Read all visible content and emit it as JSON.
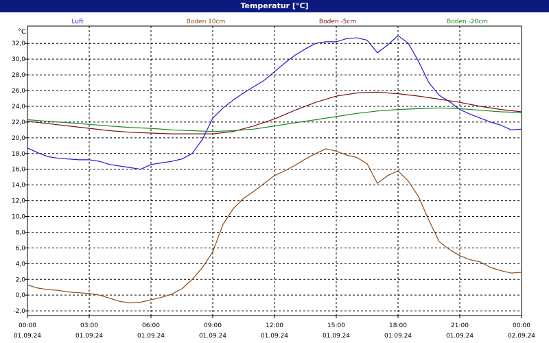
{
  "window": {
    "title": "Temperatur [°C]"
  },
  "chart_data": {
    "type": "line",
    "title": "Temperatur [°C]",
    "ylabel": "°C",
    "xlabel": "",
    "ylim": [
      -2.6,
      34.2
    ],
    "yticks": [
      -2,
      0,
      2,
      4,
      6,
      8,
      10,
      12,
      14,
      16,
      18,
      20,
      22,
      24,
      26,
      28,
      30,
      32
    ],
    "ytick_labels": [
      "-2,0",
      "0,0",
      "2,0",
      "4,0",
      "6,0",
      "8,0",
      "10,0",
      "12,0",
      "14,0",
      "16,0",
      "18,0",
      "20,0",
      "22,0",
      "24,0",
      "26,0",
      "28,0",
      "30,0",
      "32,0"
    ],
    "xlim": [
      0,
      24
    ],
    "xticks": [
      0,
      3,
      6,
      9,
      12,
      15,
      18,
      21,
      24
    ],
    "xtick_times": [
      "00:00",
      "03:00",
      "06:00",
      "09:00",
      "12:00",
      "15:00",
      "18:00",
      "21:00",
      "00:00"
    ],
    "xtick_dates": [
      "01.09.24",
      "01.09.24",
      "01.09.24",
      "01.09.24",
      "01.09.24",
      "01.09.24",
      "01.09.24",
      "01.09.24",
      "02.09.24"
    ],
    "grid": true,
    "legend": "top",
    "series": [
      {
        "name": "Luft",
        "color": "#1a1ad6",
        "x": [
          0,
          0.5,
          1,
          1.5,
          2,
          2.5,
          3,
          3.5,
          4,
          4.5,
          5,
          5.5,
          6,
          6.5,
          7,
          7.5,
          8,
          8.5,
          9,
          9.5,
          10,
          10.5,
          11,
          11.5,
          12,
          12.5,
          13,
          13.5,
          14,
          14.5,
          15,
          15.5,
          16,
          16.5,
          17,
          17.5,
          18,
          18.5,
          19,
          19.5,
          20,
          20.5,
          21,
          21.5,
          22,
          22.5,
          23,
          23.5,
          24
        ],
        "y": [
          18.7,
          18.1,
          17.6,
          17.4,
          17.3,
          17.2,
          17.2,
          17.0,
          16.6,
          16.4,
          16.2,
          16.0,
          16.6,
          16.8,
          17.0,
          17.3,
          18.0,
          19.8,
          22.5,
          23.8,
          24.8,
          25.7,
          26.5,
          27.3,
          28.4,
          29.5,
          30.5,
          31.3,
          32.0,
          32.2,
          32.2,
          32.6,
          32.7,
          32.4,
          30.8,
          31.8,
          33.0,
          32.0,
          29.7,
          27.0,
          25.4,
          24.6,
          23.6,
          23.0,
          22.5,
          22.0,
          21.6,
          21.0,
          21.1
        ]
      },
      {
        "name": "Boden 10cm",
        "color": "#8a4a12",
        "x": [
          0,
          0.5,
          1,
          1.5,
          2,
          2.5,
          3,
          3.5,
          4,
          4.5,
          5,
          5.5,
          6,
          6.5,
          7,
          7.5,
          8,
          8.5,
          9,
          9.5,
          10,
          10.5,
          11,
          11.5,
          12,
          12.5,
          13,
          13.5,
          14,
          14.5,
          15,
          15.5,
          16,
          16.5,
          17,
          17.5,
          18,
          18.5,
          19,
          19.5,
          20,
          20.5,
          21,
          21.5,
          22,
          22.5,
          23,
          23.5,
          24
        ],
        "y": [
          1.3,
          0.9,
          0.7,
          0.6,
          0.4,
          0.3,
          0.2,
          0.0,
          -0.4,
          -0.8,
          -1.0,
          -0.9,
          -0.6,
          -0.3,
          0.1,
          0.8,
          2.0,
          3.5,
          5.5,
          9.0,
          11.0,
          12.3,
          13.2,
          14.2,
          15.2,
          15.8,
          16.5,
          17.3,
          18.0,
          18.6,
          18.3,
          17.8,
          17.5,
          16.7,
          14.2,
          15.2,
          15.8,
          14.5,
          12.5,
          9.5,
          6.8,
          5.8,
          5.0,
          4.5,
          4.2,
          3.5,
          3.1,
          2.8,
          2.9
        ]
      },
      {
        "name": "Boden -5cm",
        "color": "#7a1010",
        "x": [
          0,
          1,
          2,
          3,
          4,
          5,
          6,
          7,
          8,
          9,
          10,
          11,
          12,
          13,
          14,
          15,
          16,
          17,
          18,
          19,
          20,
          21,
          22,
          23,
          24
        ],
        "y": [
          22.1,
          21.8,
          21.5,
          21.2,
          20.9,
          20.7,
          20.6,
          20.5,
          20.5,
          20.5,
          20.8,
          21.5,
          22.4,
          23.5,
          24.5,
          25.3,
          25.7,
          25.8,
          25.6,
          25.3,
          24.9,
          24.5,
          24.0,
          23.6,
          23.3
        ]
      },
      {
        "name": "Boden -20cm",
        "color": "#1a8a1a",
        "x": [
          0,
          1,
          2,
          3,
          4,
          5,
          6,
          7,
          8,
          9,
          10,
          11,
          12,
          13,
          14,
          15,
          16,
          17,
          18,
          19,
          20,
          21,
          22,
          23,
          24
        ],
        "y": [
          22.3,
          22.1,
          21.9,
          21.7,
          21.5,
          21.3,
          21.2,
          21.0,
          20.9,
          20.8,
          20.9,
          21.1,
          21.5,
          21.9,
          22.3,
          22.7,
          23.1,
          23.4,
          23.6,
          23.7,
          23.8,
          23.7,
          23.5,
          23.3,
          23.2
        ]
      }
    ]
  }
}
